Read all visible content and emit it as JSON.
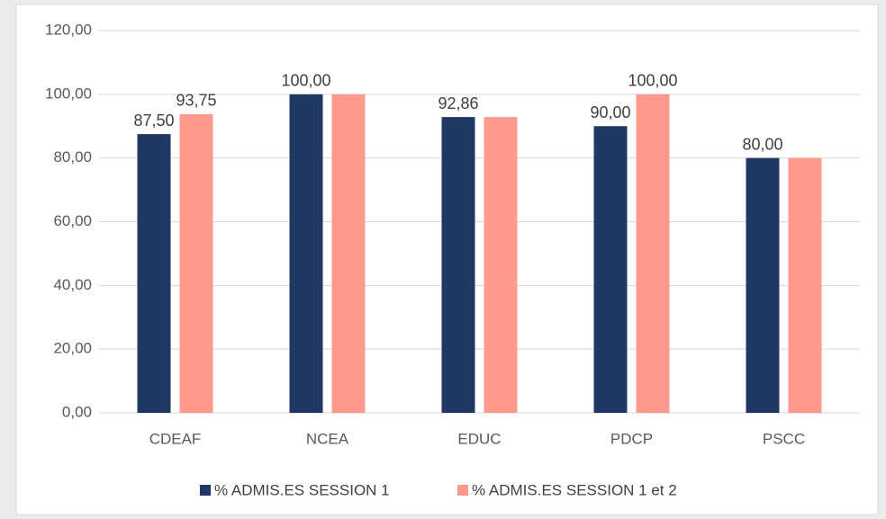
{
  "chart_data": {
    "type": "bar",
    "categories": [
      "CDEAF",
      "NCEA",
      "EDUC",
      "PDCP",
      "PSCC"
    ],
    "series": [
      {
        "name": "% ADMIS.ES SESSION 1",
        "color": "#1f3864",
        "values": [
          87.5,
          100,
          92.86,
          90,
          80
        ],
        "value_labels": [
          "87,50",
          "100,00",
          "92,86",
          "90,00",
          "80,00"
        ]
      },
      {
        "name": "% ADMIS.ES SESSION 1 et  2",
        "color": "#ff9a8c",
        "values": [
          93.75,
          100,
          92.86,
          100,
          80
        ],
        "value_labels": [
          "93,75",
          null,
          null,
          "100,00",
          null
        ]
      }
    ],
    "ylim": [
      0,
      120
    ],
    "yticks": [
      {
        "value": 0,
        "label": "0,00"
      },
      {
        "value": 20,
        "label": "20,00"
      },
      {
        "value": 40,
        "label": "40,00"
      },
      {
        "value": 60,
        "label": "60,00"
      },
      {
        "value": 80,
        "label": "80,00"
      },
      {
        "value": 100,
        "label": "100,00"
      },
      {
        "value": 120,
        "label": "120,00"
      }
    ],
    "grid": true,
    "legend": "bottom"
  }
}
